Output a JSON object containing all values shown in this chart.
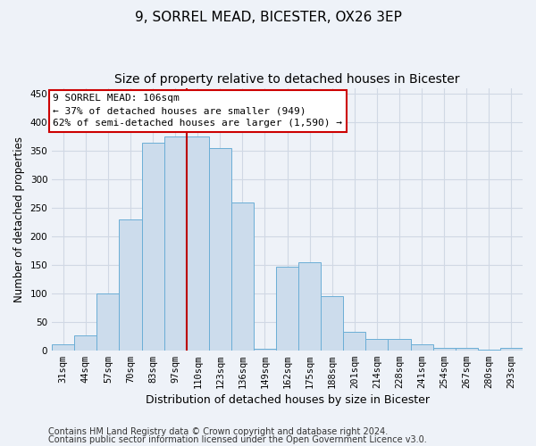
{
  "title1": "9, SORREL MEAD, BICESTER, OX26 3EP",
  "title2": "Size of property relative to detached houses in Bicester",
  "xlabel": "Distribution of detached houses by size in Bicester",
  "ylabel": "Number of detached properties",
  "categories": [
    "31sqm",
    "44sqm",
    "57sqm",
    "70sqm",
    "83sqm",
    "97sqm",
    "110sqm",
    "123sqm",
    "136sqm",
    "149sqm",
    "162sqm",
    "175sqm",
    "188sqm",
    "201sqm",
    "214sqm",
    "228sqm",
    "241sqm",
    "254sqm",
    "267sqm",
    "280sqm",
    "293sqm"
  ],
  "values": [
    10,
    26,
    100,
    230,
    365,
    375,
    375,
    355,
    260,
    3,
    147,
    155,
    95,
    32,
    20,
    20,
    10,
    5,
    5,
    1,
    4
  ],
  "bar_color": "#ccdcec",
  "bar_edge_color": "#6baed6",
  "vline_color": "#bb0000",
  "vline_x": 5.5,
  "annotation_line1": "9 SORREL MEAD: 106sqm",
  "annotation_line2": "← 37% of detached houses are smaller (949)",
  "annotation_line3": "62% of semi-detached houses are larger (1,590) →",
  "annotation_box_color": "#ffffff",
  "annotation_box_edge": "#cc0000",
  "ylim": [
    0,
    460
  ],
  "yticks": [
    0,
    50,
    100,
    150,
    200,
    250,
    300,
    350,
    400,
    450
  ],
  "footer1": "Contains HM Land Registry data © Crown copyright and database right 2024.",
  "footer2": "Contains public sector information licensed under the Open Government Licence v3.0.",
  "background_color": "#eef2f8",
  "grid_color": "#d0d8e4",
  "title1_fontsize": 11,
  "title2_fontsize": 10,
  "ylabel_fontsize": 8.5,
  "xlabel_fontsize": 9,
  "tick_fontsize": 7.5,
  "footer_fontsize": 7,
  "ann_fontsize": 8
}
